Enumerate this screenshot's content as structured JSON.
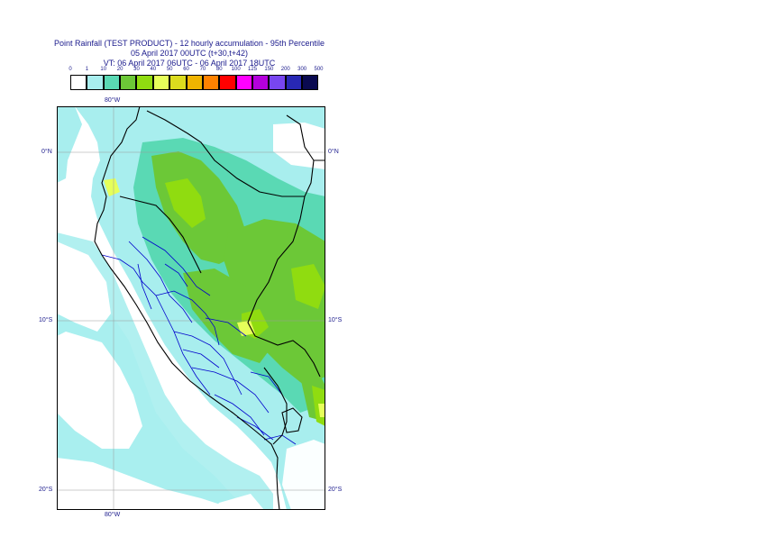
{
  "title": {
    "line1": "Point Rainfall (TEST PRODUCT) - 12 hourly accumulation - 95th Percentile",
    "line2": "05 April 2017 00UTC (t+30,t+42)",
    "line3": "VT: 06 April 2017 06UTC - 06 April 2017 18UTC"
  },
  "legend": {
    "thresholds": [
      "0",
      "1",
      "10",
      "20",
      "30",
      "40",
      "50",
      "60",
      "70",
      "80",
      "100",
      "125",
      "150",
      "200",
      "300",
      "500"
    ],
    "colors": [
      "#ffffff",
      "#a8eeee",
      "#5ad9b4",
      "#6cc837",
      "#90dc10",
      "#e6ff5a",
      "#dcdc1e",
      "#f0b400",
      "#ff8200",
      "#ff0000",
      "#ff00ff",
      "#b400dc",
      "#7846f0",
      "#2828b4",
      "#0a0a50"
    ]
  },
  "map": {
    "lon_labels": {
      "top": "80°W",
      "bottom": "80°W"
    },
    "lat_labels": [
      {
        "left": "0°N",
        "right": "0°N"
      },
      {
        "left": "10°S",
        "right": "10°S"
      },
      {
        "left": "20°S",
        "right": "20°S"
      }
    ],
    "colors": {
      "ocean_light": "#a8eeee",
      "teal": "#5ad9b4",
      "green": "#6cc837",
      "lime": "#90dc10",
      "yellow": "#e6ff5a",
      "country_border": "#000000",
      "region_border": "#0000cc",
      "grid": "#9a9a9a"
    }
  }
}
